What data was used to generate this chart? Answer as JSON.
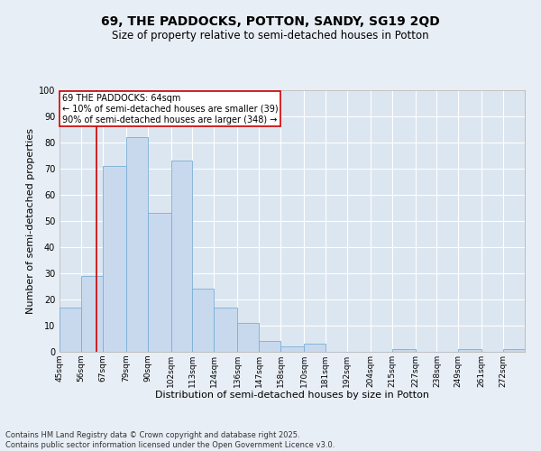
{
  "title": "69, THE PADDOCKS, POTTON, SANDY, SG19 2QD",
  "subtitle": "Size of property relative to semi-detached houses in Potton",
  "xlabel": "Distribution of semi-detached houses by size in Potton",
  "ylabel": "Number of semi-detached properties",
  "bar_color": "#c8d9ee",
  "bar_edge_color": "#7aaed6",
  "background_color": "#dce6f0",
  "grid_color": "#ffffff",
  "vline_color": "#cc0000",
  "vline_x": 64,
  "annotation_text": "69 THE PADDOCKS: 64sqm\n← 10% of semi-detached houses are smaller (39)\n90% of semi-detached houses are larger (348) →",
  "annotation_box_facecolor": "#ffffff",
  "annotation_box_edge": "#cc0000",
  "bins": [
    45,
    56,
    67,
    79,
    90,
    102,
    113,
    124,
    136,
    147,
    158,
    170,
    181,
    192,
    204,
    215,
    227,
    238,
    249,
    261,
    272
  ],
  "values": [
    17,
    29,
    71,
    82,
    53,
    73,
    24,
    17,
    11,
    4,
    2,
    3,
    0,
    0,
    0,
    1,
    0,
    0,
    1,
    0,
    1
  ],
  "ylim": [
    0,
    100
  ],
  "yticks": [
    0,
    10,
    20,
    30,
    40,
    50,
    60,
    70,
    80,
    90,
    100
  ],
  "footer": "Contains HM Land Registry data © Crown copyright and database right 2025.\nContains public sector information licensed under the Open Government Licence v3.0.",
  "fig_facecolor": "#e8eef5"
}
